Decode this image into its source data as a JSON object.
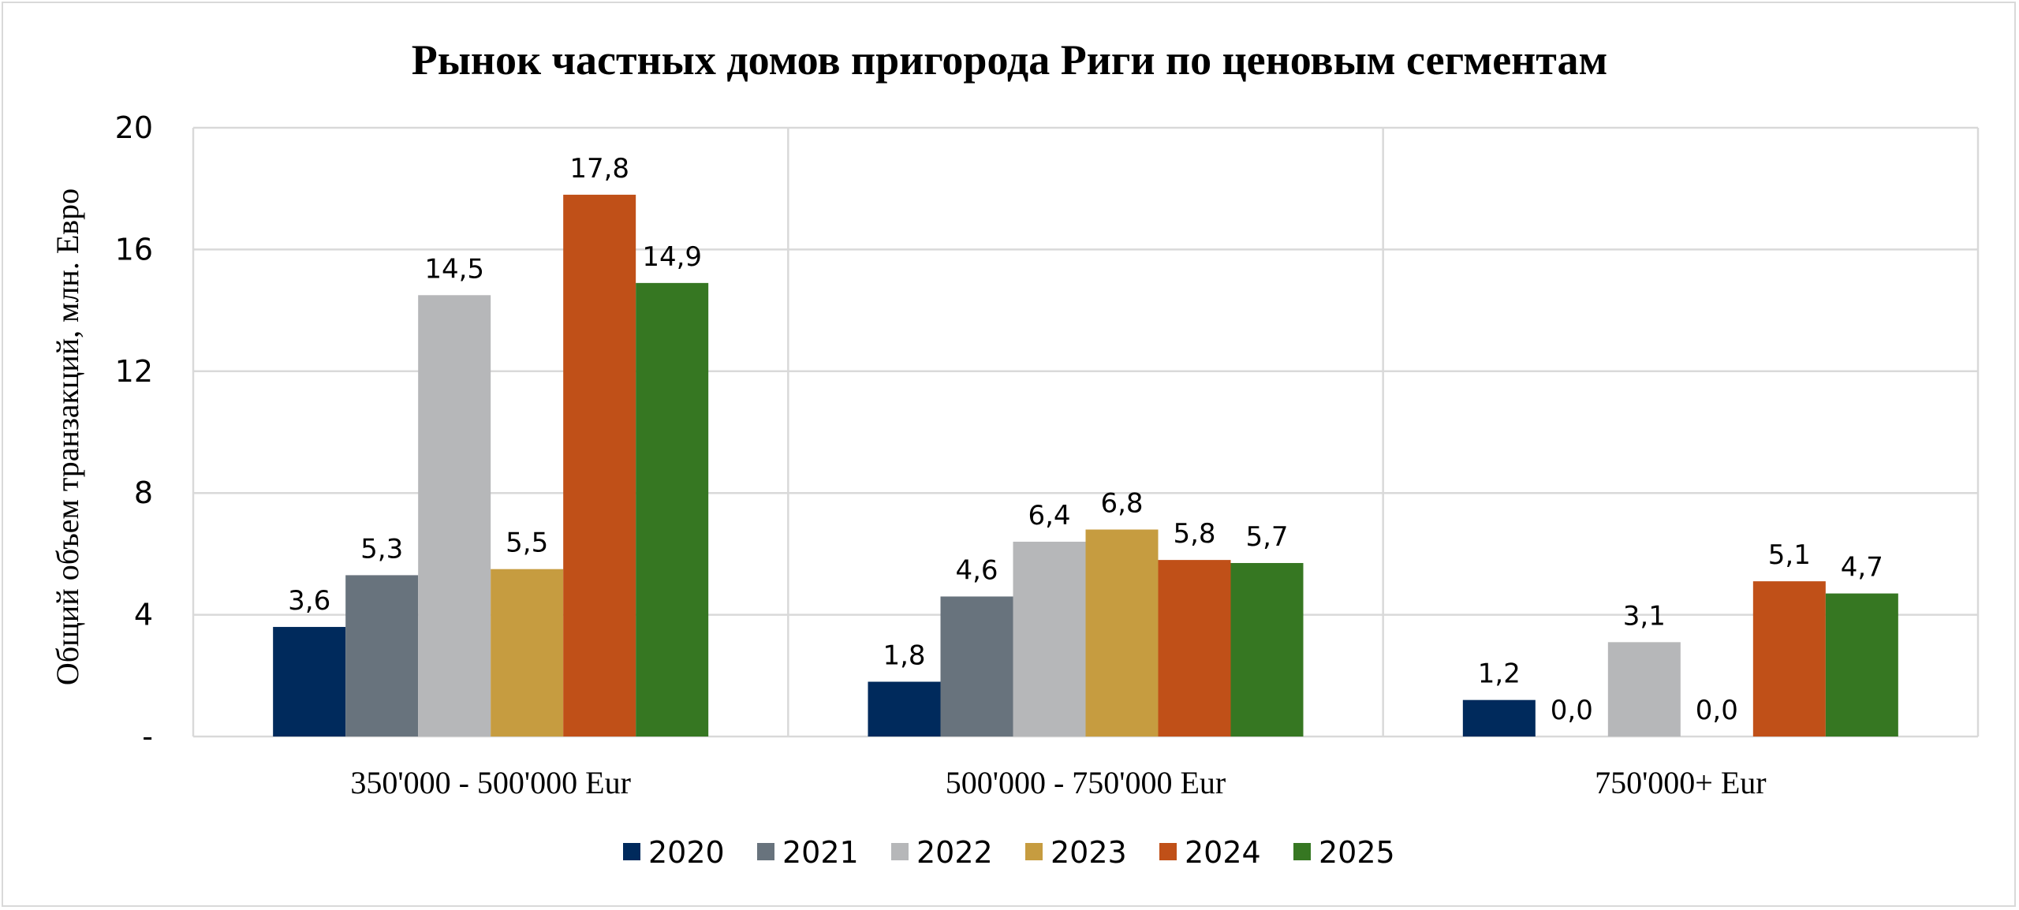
{
  "chart_data": {
    "type": "bar",
    "title": "Рынок частных домов пригорода Риги по ценовым сегментам",
    "ylabel": "Общий объем транзакций, млн. Евро",
    "xlabel": "",
    "categories": [
      "350'000 - 500'000 Eur",
      "500'000 - 750'000 Eur",
      "750'000+ Eur"
    ],
    "ylim": [
      0,
      20
    ],
    "yticks": [
      0,
      4,
      8,
      12,
      16,
      20
    ],
    "ytick_labels": [
      "-",
      "4",
      "8",
      "12",
      "16",
      "20"
    ],
    "grid": true,
    "legend_position": "bottom",
    "series": [
      {
        "name": "2020",
        "color": "#002a5c",
        "values": [
          3.6,
          1.8,
          1.2
        ],
        "labels": [
          "3,6",
          "1,8",
          "1,2"
        ]
      },
      {
        "name": "2021",
        "color": "#68737d",
        "values": [
          5.3,
          4.6,
          0.0
        ],
        "labels": [
          "5,3",
          "4,6",
          "0,0"
        ]
      },
      {
        "name": "2022",
        "color": "#b6b7b9",
        "values": [
          14.5,
          6.4,
          3.1
        ],
        "labels": [
          "14,5",
          "6,4",
          "3,1"
        ]
      },
      {
        "name": "2023",
        "color": "#c69c40",
        "values": [
          5.5,
          6.8,
          0.0
        ],
        "labels": [
          "5,5",
          "6,8",
          "0,0"
        ]
      },
      {
        "name": "2024",
        "color": "#c05018",
        "values": [
          17.8,
          5.8,
          5.1
        ],
        "labels": [
          "17,8",
          "5,8",
          "5,1"
        ]
      },
      {
        "name": "2025",
        "color": "#367722",
        "values": [
          14.9,
          5.7,
          4.7
        ],
        "labels": [
          "14,9",
          "5,7",
          "4,7"
        ]
      }
    ]
  }
}
